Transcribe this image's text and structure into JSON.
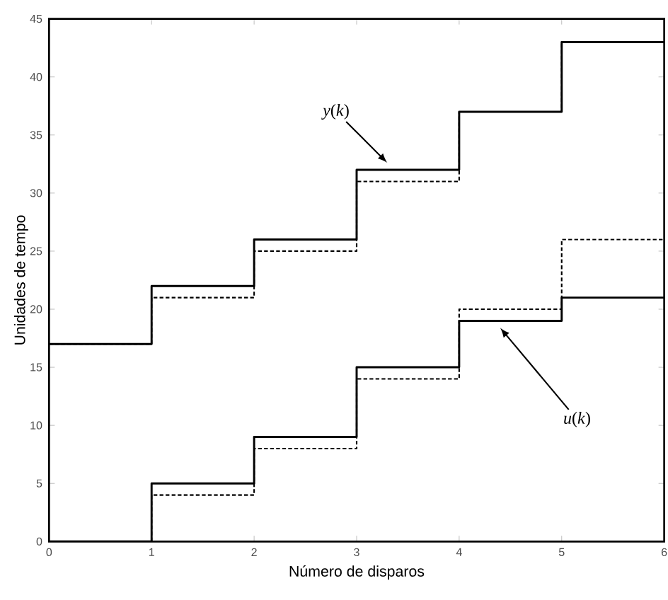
{
  "chart_data": {
    "type": "step",
    "xlabel": "Número de disparos",
    "ylabel": "Unidades de tempo",
    "x": [
      0,
      1,
      2,
      3,
      4,
      5,
      6
    ],
    "series": [
      {
        "color": "#000000",
        "line_style": "solid",
        "values": [
          17,
          22,
          26,
          32,
          37,
          43,
          43
        ]
      },
      {
        "color": "#000000",
        "line_style": "dashed",
        "values": [
          17,
          21,
          25,
          31,
          37,
          43,
          43
        ]
      },
      {
        "color": "#000000",
        "line_style": "solid",
        "values": [
          0,
          5,
          9,
          15,
          19,
          21,
          21
        ]
      },
      {
        "color": "#000000",
        "line_style": "dashed",
        "values": [
          0,
          4,
          8,
          14,
          20,
          26,
          26
        ]
      }
    ],
    "annotations": [
      "*y*(*k*)",
      "*u*(*k*)"
    ],
    "xlim": [
      0,
      6
    ],
    "ylim": [
      0,
      45
    ],
    "xticks": [
      0,
      1,
      2,
      3,
      4,
      5,
      6
    ],
    "yticks": [
      0,
      5,
      10,
      15,
      20,
      25,
      30,
      35,
      40,
      45
    ],
    "grid": false
  }
}
